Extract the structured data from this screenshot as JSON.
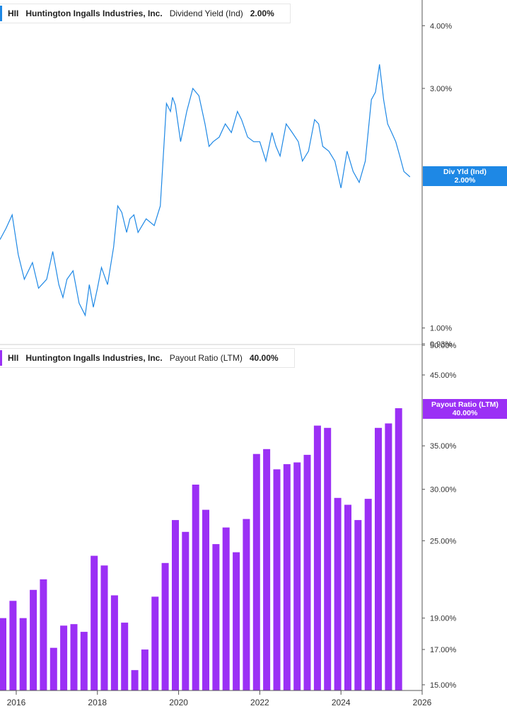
{
  "colors": {
    "yield_line": "#1e88e5",
    "payout_bar": "#9b30f5",
    "axis": "#555555"
  },
  "legend_top": {
    "ticker": "HII",
    "company": "Huntington Ingalls Industries, Inc.",
    "metric": "Dividend Yield (Ind)",
    "value": "2.00%"
  },
  "legend_bottom": {
    "ticker": "HII",
    "company": "Huntington Ingalls Industries, Inc.",
    "metric": "Payout Ratio (LTM)",
    "value": "40.00%"
  },
  "tag_top": {
    "label": "Div Yld (Ind)",
    "value": "2.00%"
  },
  "tag_bottom": {
    "label": "Payout Ratio (LTM)",
    "value": "40.00%"
  },
  "chart_data": [
    {
      "type": "line",
      "title": "Dividend Yield (Ind)",
      "scale": "log",
      "ylim": [
        0.93,
        4.5
      ],
      "xlim": [
        2015.6,
        2026.0
      ],
      "y_ticks": [
        4.0,
        3.0,
        1.0,
        0.93
      ],
      "y_tick_labels": [
        "4.00%",
        "3.00%",
        "1.00%",
        "0.93%"
      ],
      "x": [
        2015.6,
        2015.75,
        2015.9,
        2016.05,
        2016.2,
        2016.4,
        2016.55,
        2016.75,
        2016.9,
        2017.05,
        2017.15,
        2017.25,
        2017.4,
        2017.55,
        2017.7,
        2017.8,
        2017.9,
        2018.0,
        2018.1,
        2018.25,
        2018.4,
        2018.5,
        2018.6,
        2018.72,
        2018.8,
        2018.9,
        2019.0,
        2019.2,
        2019.4,
        2019.55,
        2019.7,
        2019.8,
        2019.85,
        2019.92,
        2020.05,
        2020.2,
        2020.35,
        2020.5,
        2020.65,
        2020.75,
        2020.85,
        2021.0,
        2021.15,
        2021.3,
        2021.45,
        2021.55,
        2021.7,
        2021.85,
        2022.0,
        2022.15,
        2022.3,
        2022.4,
        2022.5,
        2022.65,
        2022.8,
        2022.95,
        2023.05,
        2023.2,
        2023.35,
        2023.45,
        2023.55,
        2023.7,
        2023.85,
        2024.0,
        2024.15,
        2024.3,
        2024.45,
        2024.6,
        2024.75,
        2024.85,
        2024.95,
        2025.05,
        2025.15,
        2025.25,
        2025.35,
        2025.45,
        2025.55,
        2025.7
      ],
      "values": [
        1.5,
        1.58,
        1.68,
        1.4,
        1.25,
        1.35,
        1.2,
        1.25,
        1.42,
        1.22,
        1.15,
        1.25,
        1.3,
        1.12,
        1.06,
        1.22,
        1.1,
        1.2,
        1.32,
        1.22,
        1.45,
        1.75,
        1.7,
        1.55,
        1.65,
        1.68,
        1.55,
        1.65,
        1.6,
        1.75,
        2.8,
        2.7,
        2.88,
        2.78,
        2.35,
        2.7,
        3.0,
        2.9,
        2.55,
        2.3,
        2.35,
        2.4,
        2.55,
        2.45,
        2.7,
        2.6,
        2.4,
        2.35,
        2.35,
        2.15,
        2.45,
        2.3,
        2.2,
        2.55,
        2.45,
        2.35,
        2.15,
        2.25,
        2.6,
        2.55,
        2.3,
        2.25,
        2.15,
        1.9,
        2.25,
        2.05,
        1.95,
        2.15,
        2.85,
        2.95,
        3.35,
        2.85,
        2.55,
        2.45,
        2.35,
        2.2,
        2.05,
        2.0
      ]
    },
    {
      "type": "bar",
      "title": "Payout Ratio (LTM)",
      "scale": "log",
      "ylim": [
        14.7,
        50.0
      ],
      "xlim": [
        2015.6,
        2026.0
      ],
      "y_ticks": [
        50.0,
        45.0,
        35.0,
        30.0,
        25.0,
        19.0,
        17.0,
        15.0
      ],
      "y_tick_labels": [
        "50.00%",
        "45.00%",
        "35.00%",
        "30.00%",
        "25.00%",
        "19.00%",
        "17.00%",
        "15.00%"
      ],
      "x_ticks": [
        2016,
        2018,
        2020,
        2022,
        2024,
        2026
      ],
      "x_tick_labels": [
        "2016",
        "2018",
        "2020",
        "2022",
        "2024",
        "2026"
      ],
      "x": [
        2015.67,
        2015.92,
        2016.17,
        2016.42,
        2016.67,
        2016.92,
        2017.17,
        2017.42,
        2017.67,
        2017.92,
        2018.17,
        2018.42,
        2018.67,
        2018.92,
        2019.17,
        2019.42,
        2019.67,
        2019.92,
        2020.17,
        2020.42,
        2020.67,
        2020.92,
        2021.17,
        2021.42,
        2021.67,
        2021.92,
        2022.17,
        2022.42,
        2022.67,
        2022.92,
        2023.17,
        2023.42,
        2023.67,
        2023.92,
        2024.17,
        2024.42,
        2024.67,
        2024.92,
        2025.17,
        2025.42
      ],
      "values": [
        19.0,
        20.2,
        19.0,
        21.0,
        21.8,
        17.1,
        18.5,
        18.6,
        18.1,
        23.7,
        22.9,
        20.6,
        18.7,
        15.8,
        17.0,
        20.5,
        23.1,
        26.9,
        25.8,
        30.5,
        27.9,
        24.7,
        26.2,
        24.0,
        27.0,
        34.0,
        34.6,
        32.2,
        32.8,
        33.0,
        33.9,
        37.6,
        37.3,
        29.1,
        28.4,
        26.9,
        29.0,
        37.3,
        37.9,
        40.0
      ]
    }
  ]
}
